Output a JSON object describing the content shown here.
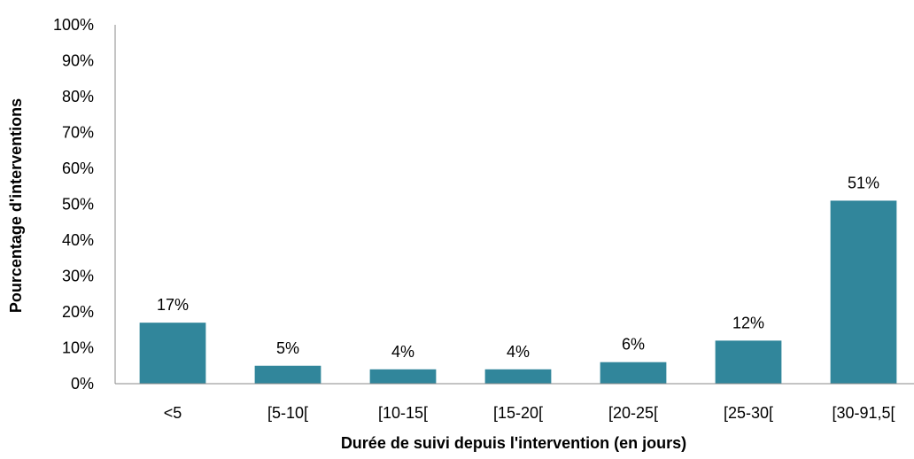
{
  "chart_data": {
    "type": "bar",
    "xlabel": "Durée de suivi depuis l'intervention (en jours)",
    "ylabel": "Pourcentage d'interventions",
    "categories": [
      "<5",
      "[5-10[",
      "[10-15[",
      "[15-20[",
      "[20-25[",
      "[25-30[",
      "[30-91,5["
    ],
    "values": [
      17,
      5,
      4,
      4,
      6,
      12,
      51
    ],
    "value_labels": [
      "17%",
      "5%",
      "4%",
      "4%",
      "6%",
      "12%",
      "51%"
    ],
    "ylim": [
      0,
      100
    ],
    "yticks": [
      "0%",
      "10%",
      "20%",
      "30%",
      "40%",
      "50%",
      "60%",
      "70%",
      "80%",
      "90%",
      "100%"
    ],
    "grid": false,
    "legend": "none",
    "bar_color": "#31869b"
  }
}
